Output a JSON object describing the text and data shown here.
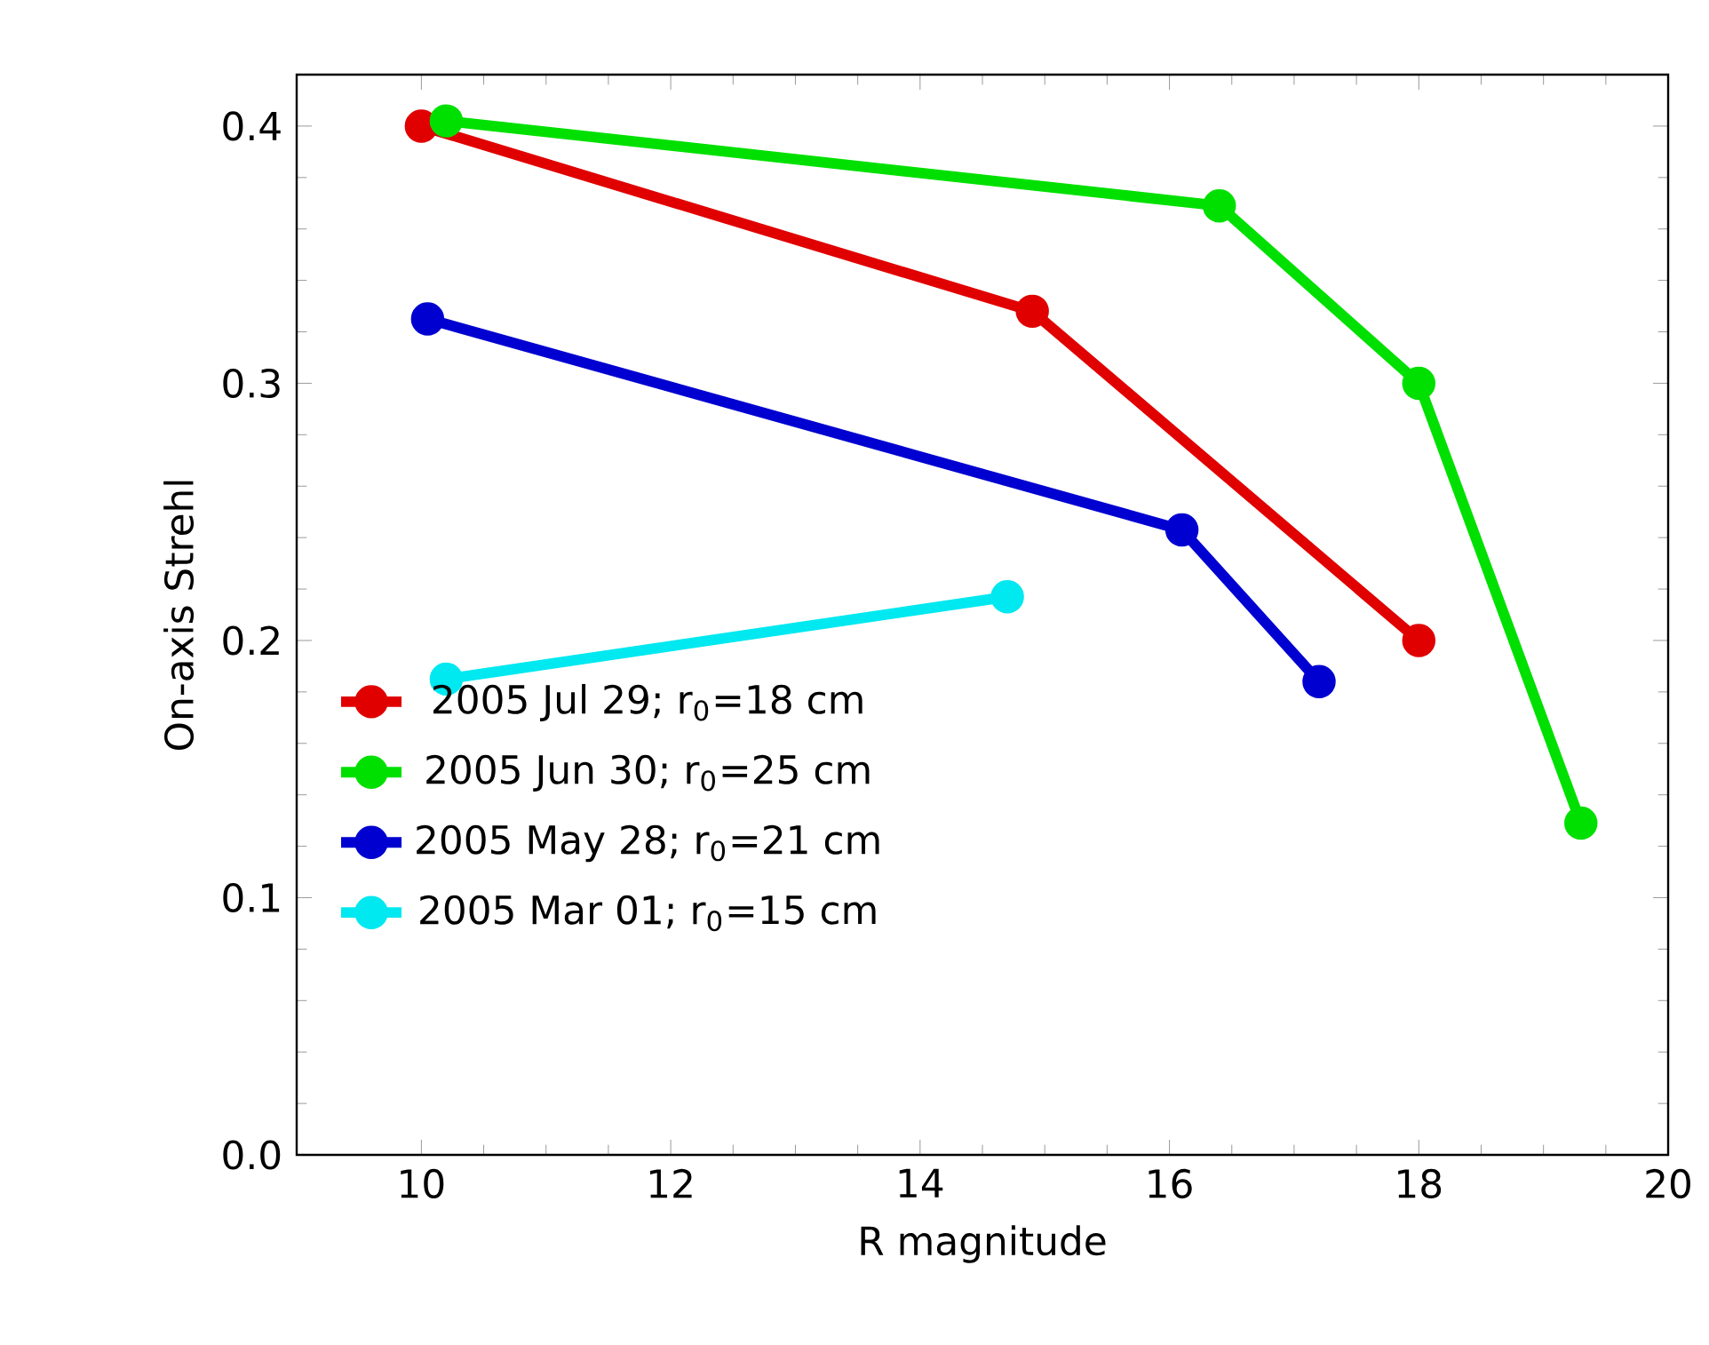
{
  "chart_data": {
    "type": "line",
    "xlabel": "R magnitude",
    "ylabel": "On-axis Strehl",
    "xlim": [
      9,
      20
    ],
    "xticks": [
      10,
      12,
      14,
      16,
      18,
      20
    ],
    "ylim": [
      0,
      0.42
    ],
    "yticks": [
      {
        "value": 0,
        "label": "0.0"
      },
      0.1,
      0.2,
      0.3,
      0.4
    ],
    "marker": "circle",
    "legend": "left",
    "grid": false,
    "series": [
      {
        "name": "2005 Jul 29; r$_{0}$=18 cm",
        "color": "#e00000",
        "x": [
          10.0,
          14.9,
          18.0
        ],
        "values": [
          0.4,
          0.328,
          0.2
        ]
      },
      {
        "name": "2005 Jun 30; r$_{0}$=25 cm",
        "color": "#00e000",
        "x": [
          10.2,
          16.4,
          18.0,
          19.3
        ],
        "values": [
          0.402,
          0.369,
          0.3,
          0.129
        ]
      },
      {
        "name": "2005 May 28; r$_{0}$=21 cm",
        "color": "#0000d0",
        "x": [
          10.05,
          16.1,
          17.2
        ],
        "values": [
          0.325,
          0.243,
          0.184
        ]
      },
      {
        "name": "2005 Mar 01; r$_{0}$=15 cm",
        "color": "#00e8f0",
        "x": [
          10.2,
          14.7
        ],
        "values": [
          0.185,
          0.217
        ]
      }
    ]
  }
}
